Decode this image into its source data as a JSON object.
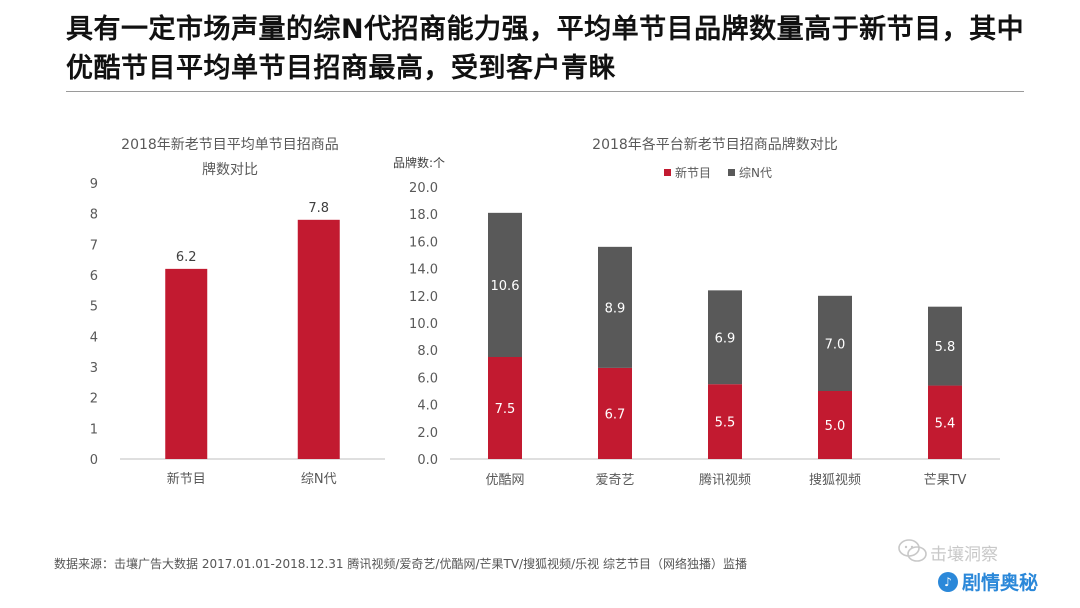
{
  "headline": "具有一定市场声量的综N代招商能力强，平均单节目品牌数量高于新节目，其中优酷节目平均单节目招商最高，受到客户青睐",
  "colors": {
    "red": "#c21a30",
    "gray": "#595959",
    "axis": "#bfbfbf",
    "text": "#595959"
  },
  "chart_data": [
    {
      "type": "bar",
      "title_lines": [
        "2018年新老节目平均单节目招商品",
        "牌数对比"
      ],
      "categories": [
        "新节目",
        "综N代"
      ],
      "values": [
        6.2,
        7.8
      ],
      "value_labels": [
        "6.2",
        "7.8"
      ],
      "ylim": [
        0,
        9
      ],
      "yticks": [
        "0",
        "1",
        "2",
        "3",
        "4",
        "5",
        "6",
        "7",
        "8",
        "9"
      ],
      "xlabel": "",
      "ylabel": ""
    },
    {
      "type": "bar",
      "stacked": true,
      "title_lines": [
        "2018年各平台新老节目招商品牌数对比"
      ],
      "ylabel": "品牌数:个",
      "categories": [
        "优酷网",
        "爱奇艺",
        "腾讯视频",
        "搜狐视频",
        "芒果TV"
      ],
      "series": [
        {
          "name": "新节目",
          "values": [
            7.5,
            6.7,
            5.5,
            5.0,
            5.4
          ],
          "labels": [
            "7.5",
            "6.7",
            "5.5",
            "5.0",
            "5.4"
          ]
        },
        {
          "name": "综N代",
          "values": [
            10.6,
            8.9,
            6.9,
            7.0,
            5.8
          ],
          "labels": [
            "10.6",
            "8.9",
            "6.9",
            "7.0",
            "5.8"
          ]
        }
      ],
      "ylim": [
        0,
        20
      ],
      "yticks": [
        "0.0",
        "2.0",
        "4.0",
        "6.0",
        "8.0",
        "10.0",
        "12.0",
        "14.0",
        "16.0",
        "18.0",
        "20.0"
      ],
      "legend_position": "top"
    }
  ],
  "source_text": "数据来源：击壤广告大数据   2017.01.01-2018.12.31 腾讯视频/爱奇艺/优酷网/芒果TV/搜狐视频/乐视  综艺节目（网络独播）监播",
  "watermark": {
    "top_text": "击壤洞察",
    "badge": "♪",
    "main_text": "剧情奥秘"
  }
}
